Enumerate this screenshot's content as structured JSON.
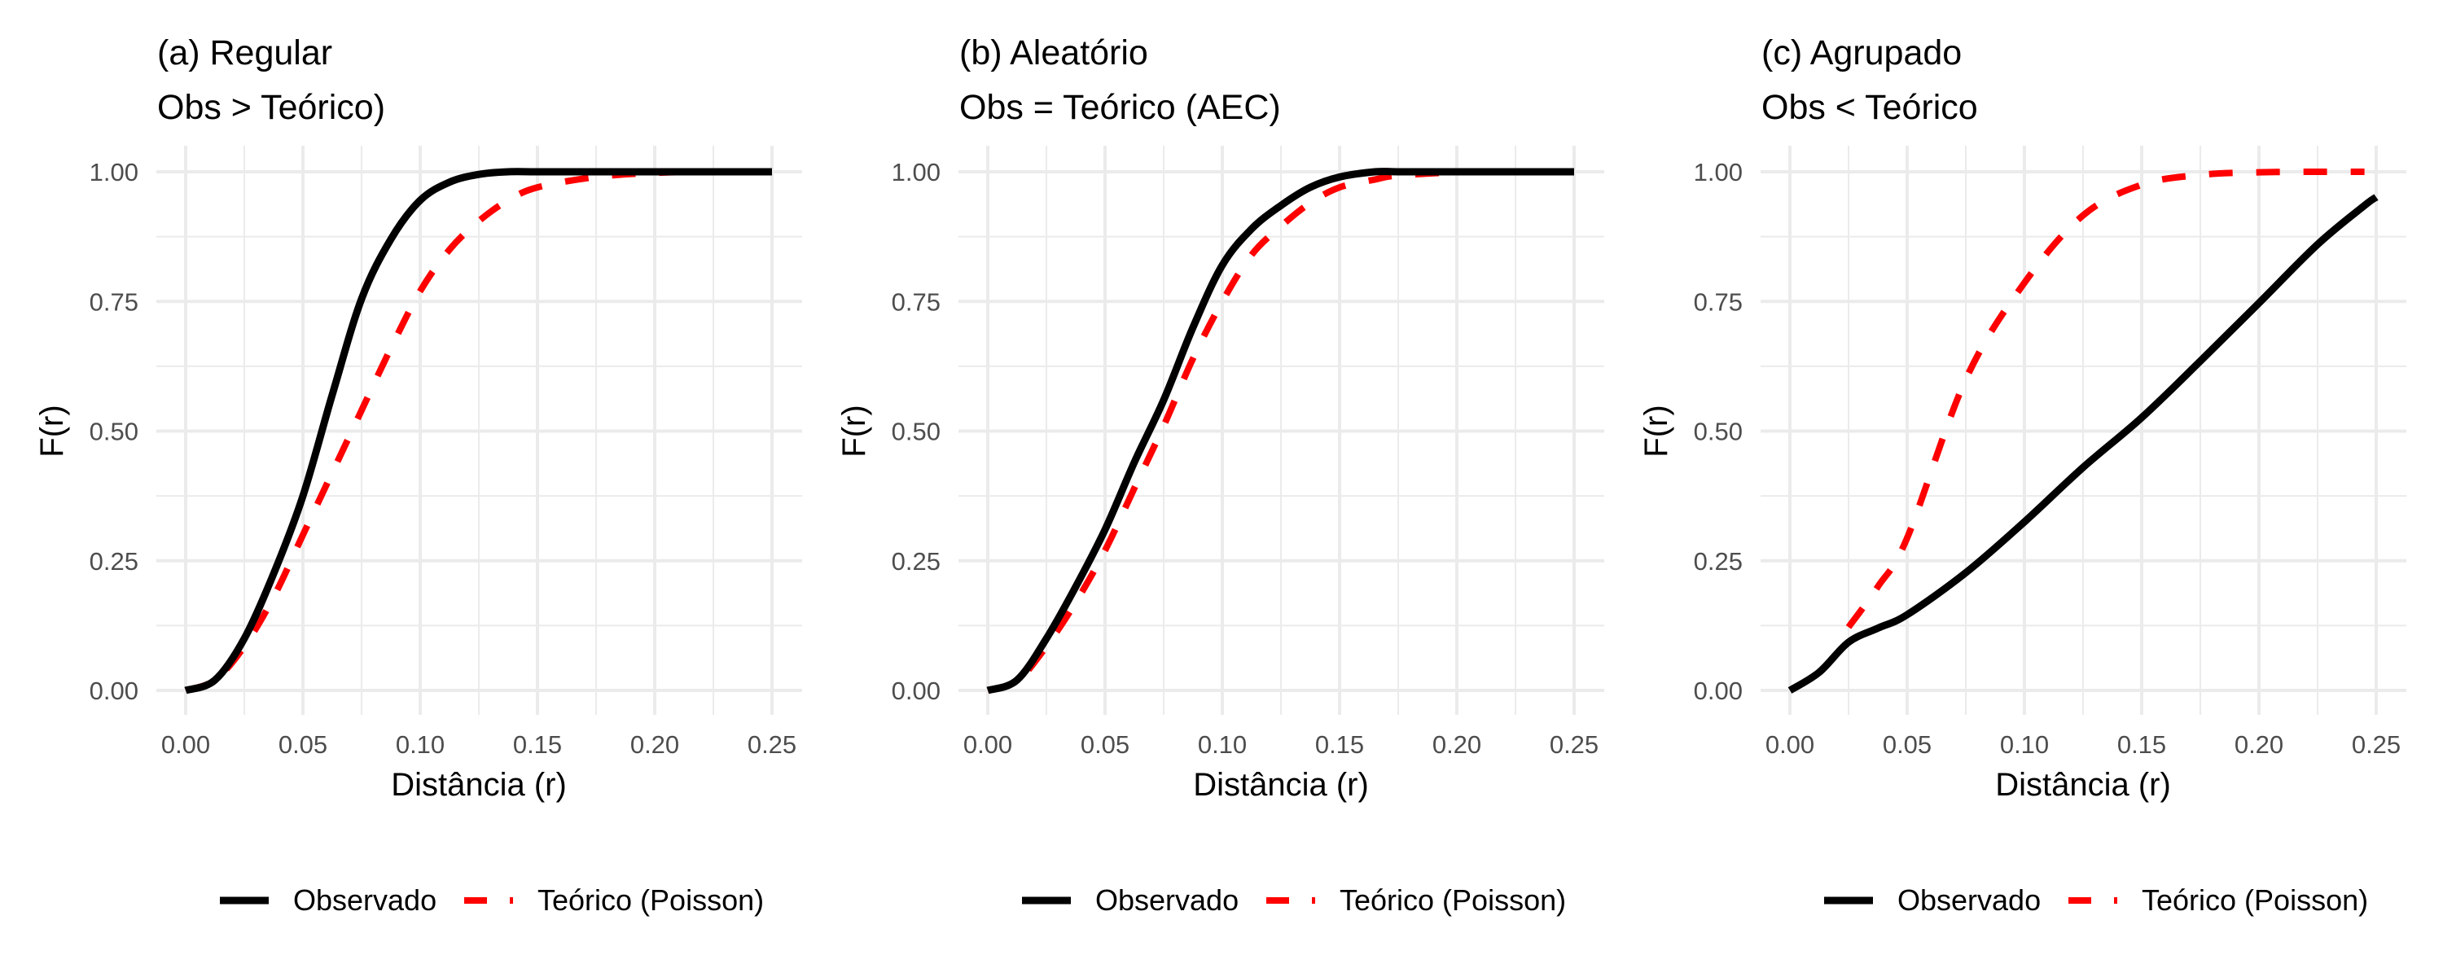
{
  "chart_data": [
    {
      "type": "line",
      "title": "(a) Regular",
      "subtitle": "Obs > Teórico)",
      "xlabel": "Distância (r)",
      "ylabel": "F(r)",
      "xlim": [
        0,
        0.25
      ],
      "ylim": [
        0,
        1
      ],
      "xticks": [
        "0.00",
        "0.05",
        "0.10",
        "0.15",
        "0.20",
        "0.25"
      ],
      "yticks": [
        "0.00",
        "0.25",
        "0.50",
        "0.75",
        "1.00"
      ],
      "grid": true,
      "legend_position": "bottom",
      "x": [
        0,
        0.0125,
        0.025,
        0.0375,
        0.05,
        0.0625,
        0.075,
        0.0875,
        0.1,
        0.1125,
        0.125,
        0.1375,
        0.15,
        0.175,
        0.2,
        0.225,
        0.25
      ],
      "series": [
        {
          "name": "Observado",
          "style": "solid",
          "color": "#000000",
          "values": [
            0,
            0.02,
            0.1,
            0.225,
            0.375,
            0.57,
            0.755,
            0.87,
            0.945,
            0.98,
            0.995,
            1.0,
            1.0,
            1.0,
            1.0,
            1.0,
            1.0
          ]
        },
        {
          "name": "Teórico (Poisson)",
          "style": "dashed",
          "color": "#ff0000",
          "values": [
            0,
            0.02,
            0.085,
            0.18,
            0.3,
            0.42,
            0.54,
            0.66,
            0.77,
            0.85,
            0.905,
            0.945,
            0.97,
            0.99,
            0.998,
            1.0,
            1.0
          ]
        }
      ]
    },
    {
      "type": "line",
      "title": "(b) Aleatório",
      "subtitle": "Obs = Teórico (AEC)",
      "xlabel": "Distância (r)",
      "ylabel": "F(r)",
      "xlim": [
        0,
        0.25
      ],
      "ylim": [
        0,
        1
      ],
      "xticks": [
        "0.00",
        "0.05",
        "0.10",
        "0.15",
        "0.20",
        "0.25"
      ],
      "yticks": [
        "0.00",
        "0.25",
        "0.50",
        "0.75",
        "1.00"
      ],
      "grid": true,
      "legend_position": "bottom",
      "x": [
        0,
        0.0125,
        0.025,
        0.0375,
        0.05,
        0.0625,
        0.075,
        0.0875,
        0.1,
        0.1125,
        0.125,
        0.1375,
        0.15,
        0.165,
        0.175,
        0.2,
        0.225,
        0.25
      ],
      "series": [
        {
          "name": "Observado",
          "style": "solid",
          "color": "#000000",
          "values": [
            0,
            0.02,
            0.1,
            0.2,
            0.31,
            0.44,
            0.56,
            0.7,
            0.82,
            0.89,
            0.935,
            0.97,
            0.99,
            1.0,
            1.0,
            1.0,
            1.0,
            1.0
          ]
        },
        {
          "name": "Teórico (Poisson)",
          "style": "dashed",
          "color": "#ff0000",
          "values": [
            0,
            0.018,
            0.085,
            0.17,
            0.27,
            0.39,
            0.51,
            0.64,
            0.75,
            0.84,
            0.895,
            0.94,
            0.97,
            0.985,
            0.993,
            0.999,
            1.0,
            1.0
          ]
        }
      ]
    },
    {
      "type": "line",
      "title": "(c) Agrupado",
      "subtitle": "Obs < Teórico",
      "xlabel": "Distância (r)",
      "ylabel": "F(r)",
      "xlim": [
        0,
        0.25
      ],
      "ylim": [
        0,
        1
      ],
      "xticks": [
        "0.00",
        "0.05",
        "0.10",
        "0.15",
        "0.20",
        "0.25"
      ],
      "yticks": [
        "0.00",
        "0.25",
        "0.50",
        "0.75",
        "1.00"
      ],
      "grid": true,
      "legend_position": "bottom",
      "x": [
        0,
        0.0125,
        0.025,
        0.0375,
        0.05,
        0.075,
        0.1,
        0.125,
        0.15,
        0.175,
        0.2,
        0.225,
        0.245,
        0.25
      ],
      "series": [
        {
          "name": "Observado",
          "style": "solid",
          "color": "#000000",
          "values": [
            0,
            0.035,
            0.093,
            0.12,
            0.146,
            0.227,
            0.325,
            0.43,
            0.526,
            0.635,
            0.747,
            0.86,
            0.935,
            0.951
          ]
        },
        {
          "name": "Teórico (Poisson)",
          "style": "dashed",
          "color": "#ff0000",
          "values": [
            null,
            null,
            0.122,
            0.2,
            0.294,
            0.6,
            0.786,
            0.916,
            0.975,
            0.994,
            0.999,
            1.0,
            1.0,
            null
          ]
        }
      ]
    }
  ],
  "legend": {
    "items": [
      {
        "label": "Observado",
        "style": "solid",
        "color": "#000000"
      },
      {
        "label": "Teórico (Poisson)",
        "style": "dashed",
        "color": "#ff0000"
      }
    ]
  }
}
